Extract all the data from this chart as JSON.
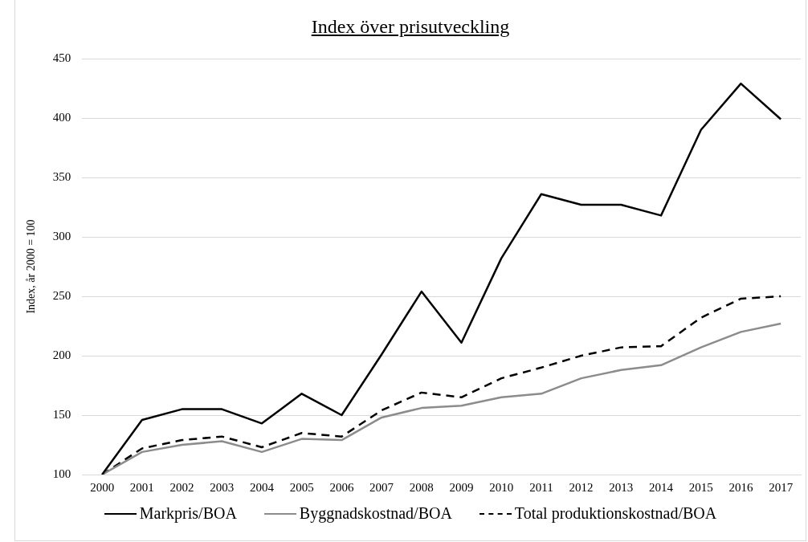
{
  "chart_data": {
    "type": "line",
    "title": "Index över prisutveckling",
    "ylabel": "Index, år 2000 = 100",
    "categories": [
      "2000",
      "2001",
      "2002",
      "2003",
      "2004",
      "2005",
      "2006",
      "2007",
      "2008",
      "2009",
      "2010",
      "2011",
      "2012",
      "2013",
      "2014",
      "2015",
      "2016",
      "2017"
    ],
    "series": [
      {
        "name": "Markpris/BOA",
        "color": "#000000",
        "line_style": "solid",
        "values": [
          100,
          146,
          155,
          155,
          143,
          168,
          150,
          201,
          254,
          211,
          282,
          336,
          327,
          327,
          318,
          390,
          429,
          399
        ]
      },
      {
        "name": "Byggnadskostnad/BOA",
        "color": "#8c8c8c",
        "line_style": "solid",
        "values": [
          100,
          119,
          125,
          128,
          119,
          130,
          129,
          148,
          156,
          158,
          165,
          168,
          181,
          188,
          192,
          207,
          220,
          227
        ]
      },
      {
        "name": "Total produktionskostnad/BOA",
        "color": "#000000",
        "line_style": "dashed",
        "values": [
          100,
          122,
          129,
          132,
          123,
          135,
          132,
          154,
          169,
          165,
          181,
          190,
          200,
          207,
          208,
          232,
          248,
          250
        ]
      }
    ],
    "ylim": [
      100,
      450
    ],
    "yticks": [
      100,
      150,
      200,
      250,
      300,
      350,
      400,
      450
    ],
    "grid": "y",
    "legend": "bottom",
    "marker": "none"
  }
}
